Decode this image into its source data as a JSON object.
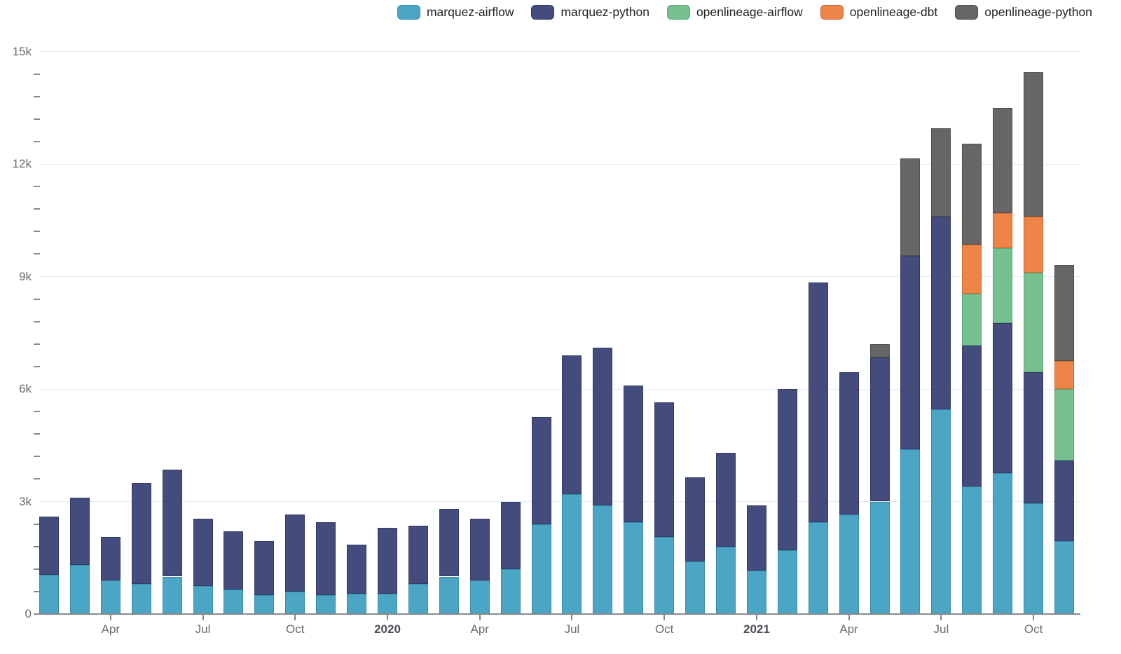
{
  "chart_data": {
    "type": "bar",
    "stacked": true,
    "grid": "horizontal",
    "legend_position": "top-right",
    "categories": [
      "Feb 2019",
      "Mar 2019",
      "Apr 2019",
      "May 2019",
      "Jun 2019",
      "Jul 2019",
      "Aug 2019",
      "Sep 2019",
      "Oct 2019",
      "Nov 2019",
      "Dec 2019",
      "Jan 2020",
      "Feb 2020",
      "Mar 2020",
      "Apr 2020",
      "May 2020",
      "Jun 2020",
      "Jul 2020",
      "Aug 2020",
      "Sep 2020",
      "Oct 2020",
      "Nov 2020",
      "Dec 2020",
      "Jan 2021",
      "Feb 2021",
      "Mar 2021",
      "Apr 2021",
      "May 2021",
      "Jun 2021",
      "Jul 2021",
      "Aug 2021",
      "Sep 2021",
      "Oct 2021",
      "Nov 2021"
    ],
    "series": [
      {
        "name": "marquez-airflow",
        "color": "#4BA5C5",
        "border_color": "#3A8CAB",
        "values": [
          1050,
          1300,
          900,
          800,
          1000,
          750,
          650,
          500,
          600,
          500,
          550,
          550,
          800,
          1000,
          900,
          1200,
          2400,
          3200,
          2900,
          2450,
          2050,
          1400,
          1800,
          1150,
          1700,
          2450,
          2650,
          3000,
          4400,
          5450,
          3400,
          3750,
          2950,
          1950
        ]
      },
      {
        "name": "marquez-python",
        "color": "#434C7D",
        "border_color": "#333B63",
        "values": [
          1550,
          1800,
          1150,
          2700,
          2850,
          1800,
          1550,
          1450,
          2050,
          1950,
          1300,
          1750,
          1550,
          1800,
          1650,
          1800,
          2850,
          3700,
          4200,
          3650,
          3600,
          2250,
          2500,
          1750,
          4300,
          6400,
          3800,
          3850,
          5150,
          5150,
          3750,
          4000,
          3500,
          2150
        ]
      },
      {
        "name": "openlineage-airflow",
        "color": "#76BF8F",
        "border_color": "#5CA878",
        "values": [
          0,
          0,
          0,
          0,
          0,
          0,
          0,
          0,
          0,
          0,
          0,
          0,
          0,
          0,
          0,
          0,
          0,
          0,
          0,
          0,
          0,
          0,
          0,
          0,
          0,
          0,
          0,
          0,
          0,
          0,
          1400,
          2000,
          2650,
          1900
        ]
      },
      {
        "name": "openlineage-dbt",
        "color": "#EF8448",
        "border_color": "#D2692F",
        "values": [
          0,
          0,
          0,
          0,
          0,
          0,
          0,
          0,
          0,
          0,
          0,
          0,
          0,
          0,
          0,
          0,
          0,
          0,
          0,
          0,
          0,
          0,
          0,
          0,
          0,
          0,
          0,
          0,
          0,
          0,
          1300,
          950,
          1500,
          750
        ]
      },
      {
        "name": "openlineage-python",
        "color": "#666666",
        "border_color": "#4D4D4D",
        "values": [
          0,
          0,
          0,
          0,
          0,
          0,
          0,
          0,
          0,
          0,
          0,
          0,
          0,
          0,
          0,
          0,
          0,
          0,
          0,
          0,
          0,
          0,
          0,
          0,
          0,
          0,
          0,
          350,
          2600,
          2350,
          2700,
          2800,
          3850,
          2550
        ]
      }
    ],
    "y_axis": {
      "ylim": [
        0,
        15000
      ],
      "major_ticks": [
        {
          "label": "0",
          "value": 0
        },
        {
          "label": "3k",
          "value": 3000
        },
        {
          "label": "6k",
          "value": 6000
        },
        {
          "label": "9k",
          "value": 9000
        },
        {
          "label": "12k",
          "value": 12000
        },
        {
          "label": "15k",
          "value": 15000
        }
      ],
      "minor_tick_step": 600
    },
    "x_axis": {
      "ticks": [
        {
          "label": "Apr",
          "month_index": 2,
          "bold": false
        },
        {
          "label": "Jul",
          "month_index": 5,
          "bold": false
        },
        {
          "label": "Oct",
          "month_index": 8,
          "bold": false
        },
        {
          "label": "2020",
          "month_index": 11,
          "bold": true
        },
        {
          "label": "Apr",
          "month_index": 14,
          "bold": false
        },
        {
          "label": "Jul",
          "month_index": 17,
          "bold": false
        },
        {
          "label": "Oct",
          "month_index": 20,
          "bold": false
        },
        {
          "label": "2021",
          "month_index": 23,
          "bold": true
        },
        {
          "label": "Apr",
          "month_index": 26,
          "bold": false
        },
        {
          "label": "Jul",
          "month_index": 29,
          "bold": false
        },
        {
          "label": "Oct",
          "month_index": 32,
          "bold": false
        }
      ]
    }
  },
  "colors": {
    "background": "#ffffff",
    "gridline": "#e7ebf3",
    "axis": "#87898e",
    "tick_label": "#6a6a72",
    "year_label": "#4c4c54",
    "legend_text": "#1f1f1f"
  }
}
